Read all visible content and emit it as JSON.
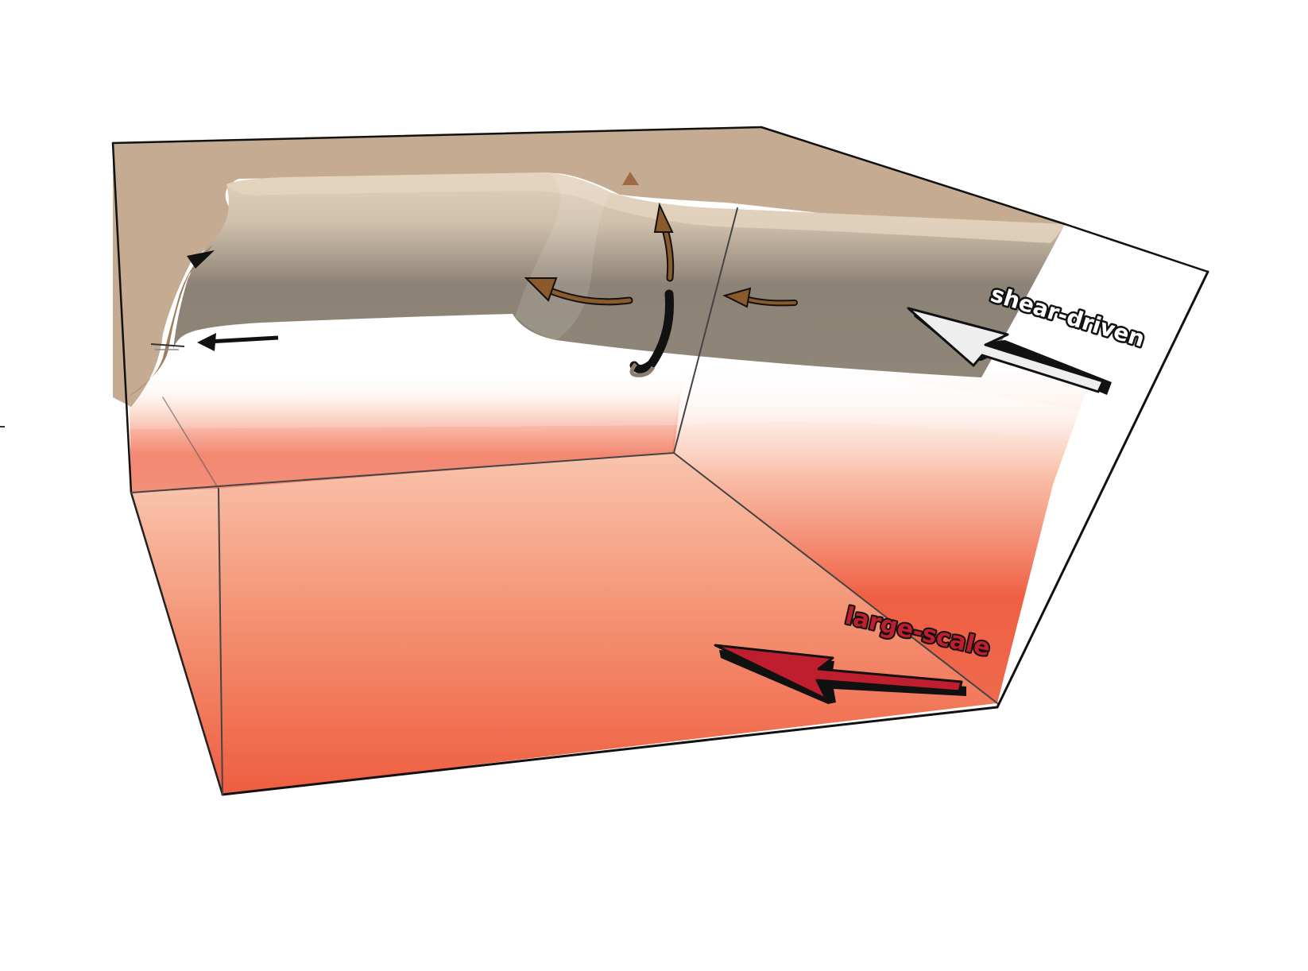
{
  "colors": {
    "lithosphere_top": "#c4ab92",
    "lithosphere_light": "#e2d0b8",
    "slab_dark": "#8a7f72",
    "mantle_light": "#f7b8a0",
    "mantle_deep": "#ee5a3f",
    "small_arrow_fill": "#8b5a2b",
    "shear_arrow_fill": "#ebebeb",
    "large_arrow_fill": "#be1e2d",
    "outline": "#000000"
  },
  "labels": {
    "shear_driven": "shear-driven",
    "large_scale": "large-scale"
  },
  "icons": {
    "shear_arrow": "block-arrow-left-icon",
    "large_arrow": "block-arrow-left-icon",
    "toroidal_arrow": "circular-arrow-icon"
  }
}
